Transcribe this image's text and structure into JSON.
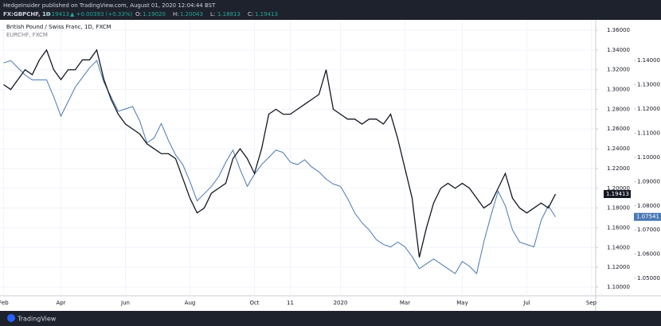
{
  "header": {
    "publisher": "HedgeInsider published on TradingView.com, August 01, 2020 12:04:44 BST",
    "symbol": "FX:GBPCHF, 1D",
    "price": "1.19413",
    "change": "▲ +0.00393 (+0.33%)",
    "ohlc": [
      [
        "O:",
        "1.19020"
      ],
      [
        "H:",
        "1.20043"
      ],
      [
        "L:",
        "1.18813"
      ],
      [
        "C:",
        "1.19413"
      ]
    ]
  },
  "footer": "TradingView",
  "chart_data": {
    "type": "line",
    "grid": true,
    "categories": [
      "Feb",
      null,
      null,
      null,
      null,
      null,
      null,
      null,
      "Apr",
      null,
      null,
      null,
      null,
      null,
      null,
      null,
      null,
      "Jun",
      null,
      null,
      null,
      null,
      null,
      null,
      null,
      null,
      "Aug",
      null,
      null,
      null,
      null,
      null,
      null,
      null,
      null,
      "Oct",
      null,
      null,
      null,
      null,
      "11",
      null,
      null,
      null,
      null,
      null,
      null,
      "2020",
      null,
      null,
      null,
      null,
      null,
      null,
      null,
      null,
      "Mar",
      null,
      null,
      null,
      null,
      null,
      null,
      null,
      "May",
      null,
      null,
      null,
      null,
      null,
      null,
      null,
      null,
      "Jul",
      null,
      null,
      null,
      null,
      null,
      null,
      null,
      null,
      "Sep"
    ],
    "ylim": [
      1.0911,
      1.3705
    ],
    "yticks": [
      {
        "value": 1.1,
        "label": "1.10000"
      },
      {
        "value": 1.12,
        "label": "1.12000"
      },
      {
        "value": 1.14,
        "label": "1.14000"
      },
      {
        "value": 1.16,
        "label": "1.16000"
      },
      {
        "value": 1.18,
        "label": "1.18000"
      },
      {
        "value": 1.2,
        "label": "1.20000"
      },
      {
        "value": 1.22,
        "label": "1.22000"
      },
      {
        "value": 1.24,
        "label": "1.24000"
      },
      {
        "value": 1.26,
        "label": "1.26000"
      },
      {
        "value": 1.28,
        "label": "1.28000"
      },
      {
        "value": 1.3,
        "label": "1.30000"
      },
      {
        "value": 1.32,
        "label": "1.32000"
      },
      {
        "value": 1.34,
        "label": "1.34000"
      },
      {
        "value": 1.36,
        "label": "1.36000"
      }
    ],
    "y2lim": [
      1.0428,
      1.1568
    ],
    "y2ticks": [
      {
        "value": 1.05,
        "label": "1.05000"
      },
      {
        "value": 1.06,
        "label": "1.06000"
      },
      {
        "value": 1.07,
        "label": "1.07000"
      },
      {
        "value": 1.08,
        "label": "1.08000"
      },
      {
        "value": 1.09,
        "label": "1.09000"
      },
      {
        "value": 1.1,
        "label": "1.10000"
      },
      {
        "value": 1.11,
        "label": "1.11000"
      },
      {
        "value": 1.12,
        "label": "1.12000"
      },
      {
        "value": 1.13,
        "label": "1.13000"
      },
      {
        "value": 1.14,
        "label": "1.14000"
      }
    ],
    "series": [
      {
        "name": "British Pound / Swiss Franc, 1D, FXCM",
        "color": "#131722",
        "last_label": {
          "value": 1.19413,
          "label": "1.19413"
        },
        "values": [
          1.305,
          1.3,
          1.31,
          1.32,
          1.315,
          1.33,
          1.34,
          1.32,
          1.31,
          1.32,
          1.32,
          1.33,
          1.33,
          1.34,
          1.31,
          1.29,
          1.275,
          1.265,
          1.26,
          1.255,
          1.245,
          1.24,
          1.235,
          1.235,
          1.23,
          1.21,
          1.19,
          1.175,
          1.18,
          1.195,
          1.2,
          1.205,
          1.23,
          1.24,
          1.23,
          1.215,
          1.24,
          1.275,
          1.28,
          1.275,
          1.275,
          1.28,
          1.285,
          1.29,
          1.295,
          1.32,
          1.28,
          1.275,
          1.27,
          1.27,
          1.265,
          1.27,
          1.27,
          1.265,
          1.275,
          1.25,
          1.22,
          1.19,
          1.13,
          1.16,
          1.185,
          1.2,
          1.205,
          1.2,
          1.205,
          1.2,
          1.19,
          1.18,
          1.185,
          1.2,
          1.215,
          1.19,
          1.18,
          1.175,
          1.18,
          1.185,
          1.18,
          1.19413,
          null,
          null,
          null,
          null,
          null
        ]
      },
      {
        "name": "EURCHF, FXCM",
        "color": "#4a78b5",
        "axis": "y2",
        "last_label": {
          "value": 1.07541,
          "label": "1.07541"
        },
        "values": [
          1.139,
          1.14,
          1.137,
          1.134,
          1.132,
          1.132,
          1.132,
          1.125,
          1.117,
          1.123,
          1.129,
          1.133,
          1.137,
          1.14,
          1.131,
          1.125,
          1.119,
          1.12,
          1.121,
          1.115,
          1.106,
          1.108,
          1.114,
          1.107,
          1.101,
          1.097,
          1.09,
          1.082,
          1.085,
          1.088,
          1.092,
          1.098,
          1.103,
          1.095,
          1.088,
          1.093,
          1.097,
          1.1,
          1.103,
          1.102,
          1.098,
          1.097,
          1.099,
          1.096,
          1.094,
          1.091,
          1.089,
          1.088,
          1.083,
          1.077,
          1.073,
          1.07,
          1.066,
          1.064,
          1.063,
          1.065,
          1.063,
          1.059,
          1.054,
          1.056,
          1.058,
          1.056,
          1.054,
          1.052,
          1.057,
          1.055,
          1.052,
          1.065,
          1.076,
          1.086,
          1.08,
          1.07,
          1.065,
          1.064,
          1.063,
          1.074,
          1.08,
          1.07541,
          null,
          null,
          null,
          null,
          null
        ]
      }
    ]
  }
}
